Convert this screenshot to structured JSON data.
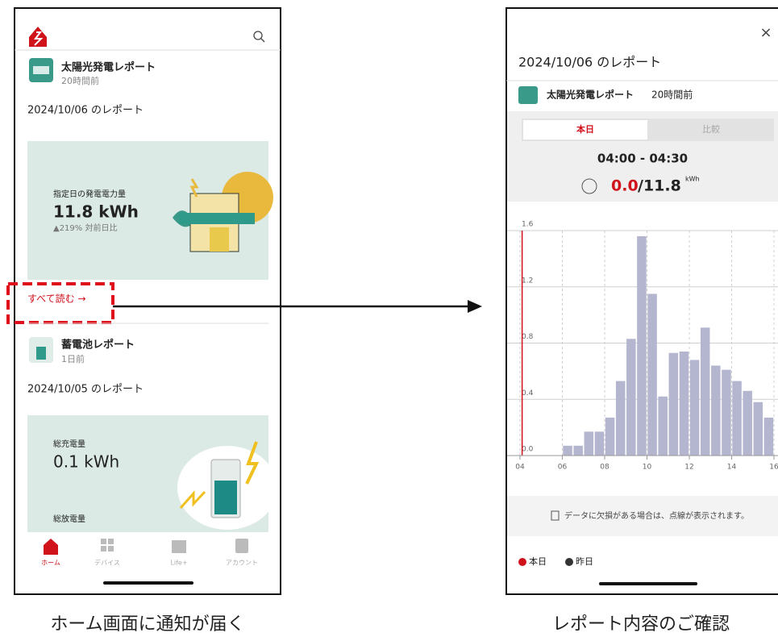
{
  "left_screen": {
    "report1": {
      "title": "太陽光発電レポート",
      "time": "20時間前",
      "date": "2024/10/06 のレポート",
      "metric_label": "指定日の発電電力量",
      "metric_value": "11.8 kWh",
      "metric_change": "▲219% 対前日比",
      "read_all": "すべて読む →"
    },
    "report2": {
      "title": "蓄電池レポート",
      "time": "1日前",
      "date": "2024/10/05 のレポート",
      "metric1_label": "総充電量",
      "metric1_value": "0.1 kWh",
      "metric2_label": "総放電量"
    },
    "nav": [
      "ホーム",
      "デバイス",
      "Life+",
      "アカウント"
    ]
  },
  "right_screen": {
    "close": "×",
    "date": "2024/10/06 のレポート",
    "report_title": "太陽光発電レポート",
    "report_time": "20時間前",
    "tabs": [
      "本日",
      "比較"
    ],
    "time_range": "04:00 - 04:30",
    "current_value": "0.0",
    "total_value": "/11.8",
    "unit": "kWh",
    "note": "データに欠損がある場合は、点線が表示されます。",
    "legend": [
      "本日",
      "昨日"
    ],
    "chart_data": {
      "type": "bar",
      "color": "#b4b6d0",
      "now_color": "#d0121b",
      "now_x": 4.1,
      "bar_width": 0.5,
      "x": [
        6,
        6.5,
        7,
        7.5,
        8,
        8.5,
        9,
        9.5,
        10,
        10.5,
        11,
        11.5,
        12,
        12.5,
        13,
        13.5,
        14,
        14.5,
        15,
        15.5
      ],
      "values": [
        0.07,
        0.07,
        0.17,
        0.17,
        0.27,
        0.53,
        0.83,
        1.56,
        1.15,
        0.42,
        0.73,
        0.74,
        0.68,
        0.91,
        0.64,
        0.61,
        0.53,
        0.46,
        0.38,
        0.27
      ],
      "xlim": [
        4,
        16
      ],
      "ylim": [
        0,
        1.6
      ],
      "xticks": [
        {
          "value": 4,
          "label": "04"
        },
        {
          "value": 6,
          "label": "06"
        },
        {
          "value": 8,
          "label": "08"
        },
        10,
        12,
        14,
        16
      ],
      "yticks": [
        {
          "value": 0,
          "label": "0.0"
        },
        0.4,
        0.8,
        1.2,
        1.6
      ],
      "grid": true
    }
  },
  "captions": [
    "ホーム画面に通知が届く",
    "レポート内容のご確認"
  ]
}
